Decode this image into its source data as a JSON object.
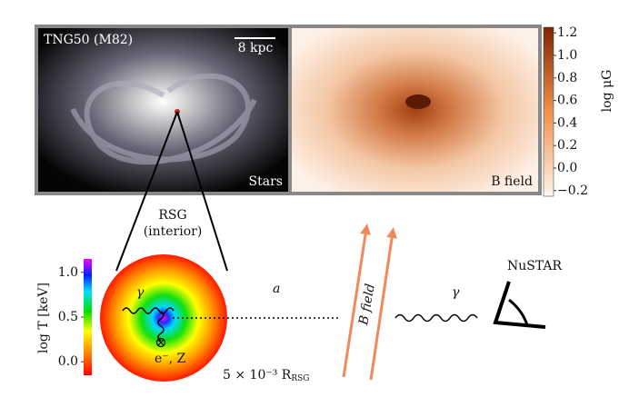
{
  "top_panel": {
    "left_title": "TNG50 (M82)",
    "scale_bar": "8 kpc",
    "left_label": "Stars",
    "right_label": "B field",
    "colorbar": {
      "label": "log μG",
      "lim": [
        -0.25,
        1.25
      ],
      "ticks": [
        {
          "value": 1.2,
          "label": "1.2"
        },
        {
          "value": 1.0,
          "label": "1.0"
        },
        {
          "value": 0.8,
          "label": "0.8"
        },
        {
          "value": 0.6,
          "label": "0.6"
        },
        {
          "value": 0.4,
          "label": "0.4"
        },
        {
          "value": 0.2,
          "label": "0.2"
        },
        {
          "value": 0.0,
          "label": "0.0"
        },
        {
          "value": -0.2,
          "label": "−0.2"
        }
      ]
    }
  },
  "bottom_panel": {
    "rsg_label": "RSG",
    "rsg_sublabel": "(interior)",
    "axion": "a",
    "photon_inside": "γ",
    "electron": "e⁻, Z",
    "size_note": "5 × 10⁻³ R",
    "size_sub": "RSG",
    "b_field": "B field",
    "photon_out": "γ",
    "detector": "NuSTAR",
    "colorbar": {
      "label": "log T [keV]",
      "lim": [
        -0.15,
        1.15
      ],
      "ticks": [
        {
          "value": 1.0,
          "label": "1.0"
        },
        {
          "value": 0.5,
          "label": "0.5"
        },
        {
          "value": 0.0,
          "label": "0.0"
        }
      ]
    }
  }
}
